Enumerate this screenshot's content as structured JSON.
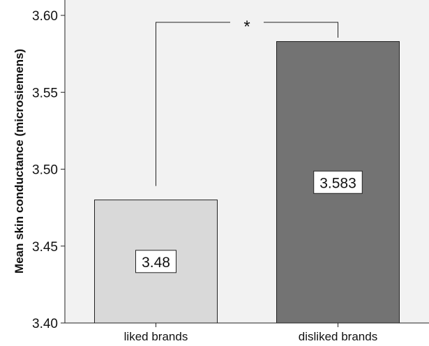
{
  "chart_data": {
    "type": "bar",
    "title": "",
    "xlabel": "",
    "ylabel": "Mean skin conductance (microsiemens)",
    "ylim": [
      3.4,
      3.61
    ],
    "yticks": [
      "3.40",
      "3.45",
      "3.50",
      "3.55",
      "3.60"
    ],
    "categories": [
      "liked brands",
      "disliked brands"
    ],
    "values": [
      3.48,
      3.583
    ],
    "value_labels": [
      "3.48",
      "3.583"
    ],
    "bar_colors": [
      "#d9d9d9",
      "#737373"
    ],
    "plot_background": "#f2f2f2",
    "grid": false,
    "legend": "none",
    "significance": {
      "label": "*",
      "between": [
        "liked brands",
        "disliked brands"
      ]
    }
  }
}
